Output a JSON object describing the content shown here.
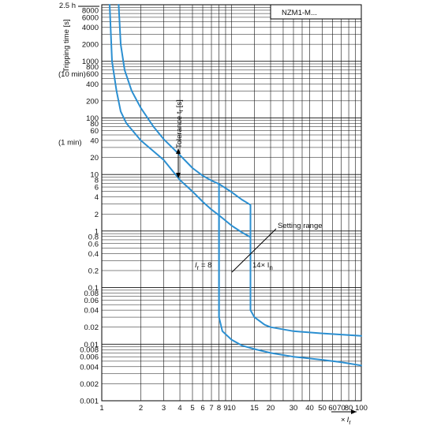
{
  "chart_data": {
    "type": "line",
    "title": "NZM1-M...",
    "ylabel": "Tripping time [s]",
    "y_top_label": "2.5 h",
    "y_side_labels": [
      {
        "text": "(10 min)",
        "value": 600
      },
      {
        "text": "(1 min)",
        "value": 60
      }
    ],
    "xlabel_symbol": "×",
    "xlabel_var": "I",
    "xlabel_sub": "r",
    "x_scale": "log",
    "y_scale": "log",
    "xlim": [
      1,
      100
    ],
    "ylim": [
      0.001,
      10000
    ],
    "xticks": [
      1,
      2,
      3,
      4,
      5,
      6,
      7,
      8,
      9,
      10,
      15,
      20,
      30,
      40,
      50,
      60,
      70,
      80,
      100
    ],
    "yticks": [
      0.001,
      0.002,
      0.004,
      0.006,
      0.008,
      0.01,
      0.02,
      0.04,
      0.06,
      0.08,
      0.1,
      0.2,
      0.4,
      0.6,
      0.8,
      1,
      2,
      4,
      6,
      8,
      10,
      20,
      40,
      60,
      80,
      100,
      200,
      400,
      600,
      800,
      1000,
      2000,
      4000,
      6000,
      8000
    ],
    "grid": true,
    "series": [
      {
        "points": [
          [
            1.15,
            10000
          ],
          [
            1.2,
            1000
          ],
          [
            1.3,
            300
          ],
          [
            1.4,
            130
          ],
          [
            1.55,
            80
          ],
          [
            2,
            40
          ],
          [
            3,
            18
          ],
          [
            4,
            8
          ],
          [
            5,
            5
          ],
          [
            6,
            3.3
          ],
          [
            7,
            2.4
          ],
          [
            8,
            1.9
          ],
          [
            10,
            1.25
          ],
          [
            12,
            0.95
          ],
          [
            14,
            0.78
          ],
          [
            14,
            0.04
          ],
          [
            15,
            0.03
          ],
          [
            18,
            0.022
          ],
          [
            20,
            0.02
          ],
          [
            30,
            0.017
          ],
          [
            50,
            0.0155
          ],
          [
            70,
            0.0148
          ],
          [
            100,
            0.014
          ]
        ]
      },
      {
        "points": [
          [
            1.35,
            10000
          ],
          [
            1.4,
            2000
          ],
          [
            1.5,
            700
          ],
          [
            1.7,
            300
          ],
          [
            2,
            150
          ],
          [
            2.5,
            70
          ],
          [
            3,
            42
          ],
          [
            4,
            22
          ],
          [
            5,
            13
          ],
          [
            6,
            9.5
          ],
          [
            7,
            7.8
          ],
          [
            8,
            6.8
          ],
          [
            10,
            4.9
          ],
          [
            12,
            3.6
          ],
          [
            14,
            2.9
          ],
          [
            14,
            0.3
          ],
          [
            14,
            0.04
          ]
        ]
      },
      {
        "points": [
          [
            8,
            6.8
          ],
          [
            8,
            0.03
          ],
          [
            8.5,
            0.017
          ],
          [
            10,
            0.012
          ],
          [
            12,
            0.0095
          ],
          [
            15,
            0.0082
          ],
          [
            20,
            0.007
          ],
          [
            30,
            0.006
          ],
          [
            50,
            0.0053
          ],
          [
            70,
            0.0048
          ],
          [
            100,
            0.0042
          ]
        ]
      },
      {
        "points": [
          [
            8,
            1.9
          ],
          [
            8,
            0.03
          ]
        ]
      }
    ],
    "annotations": {
      "tolerance": "Tolerance t",
      "tolerance_sub": "r",
      "tolerance_unit": " [s]",
      "setting_range": "Setting range",
      "ir_eq": "I",
      "ir_eq_sub": "r",
      "ir_eq_rest": " = 8",
      "in_prefix": "14× I",
      "in_sub": "n"
    },
    "colors": {
      "curve": "#2b8fd1",
      "grid": "#111111",
      "axis": "#000000",
      "text": "#111111"
    }
  }
}
